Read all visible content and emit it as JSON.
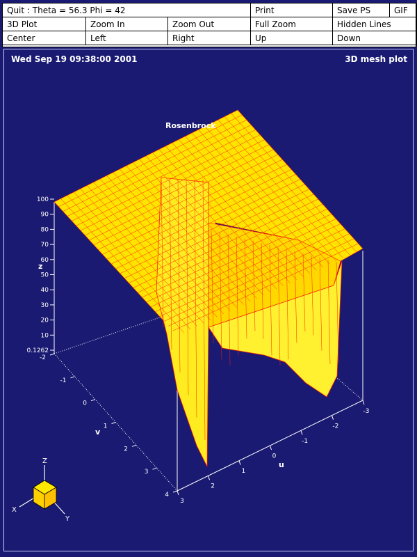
{
  "toolbar": {
    "rows": [
      [
        {
          "name": "quit-theta-phi-status",
          "label": "Quit :  Theta = 56.3   Phi = 42"
        },
        {
          "name": "print-button",
          "label": "Print"
        },
        {
          "name": "save-ps-button",
          "label": "Save PS"
        },
        {
          "name": "gif-button",
          "label": "GIF"
        }
      ],
      [
        {
          "name": "3d-plot-button",
          "label": "3D Plot"
        },
        {
          "name": "zoom-in-button",
          "label": "Zoom In"
        },
        {
          "name": "zoom-out-button",
          "label": "Zoom Out"
        },
        {
          "name": "full-zoom-button",
          "label": "Full Zoom"
        },
        {
          "name": "hidden-lines-button",
          "label": "Hidden Lines"
        }
      ],
      [
        {
          "name": "center-button",
          "label": "Center"
        },
        {
          "name": "left-button",
          "label": "Left"
        },
        {
          "name": "right-button",
          "label": "Right"
        },
        {
          "name": "up-button",
          "label": "Up"
        },
        {
          "name": "down-button",
          "label": "Down"
        }
      ]
    ]
  },
  "header": {
    "timestamp": "Wed Sep 19 09:38:00 2001",
    "plot_type": "3D mesh plot"
  },
  "plot": {
    "title": "Rosenbrock",
    "z_axis_label": "z",
    "v_axis_label": "v",
    "u_axis_label": "u",
    "z_ticks": [
      "100",
      "90",
      "80",
      "70",
      "60",
      "50",
      "40",
      "30",
      "20",
      "10",
      "0.1262"
    ],
    "v_ticks": [
      "-2",
      "-1",
      "0",
      "1",
      "2",
      "3",
      "4"
    ],
    "u_ticks": [
      "3",
      "2",
      "1",
      "0",
      "-1",
      "-2",
      "-3"
    ],
    "orientation": {
      "z": "Z",
      "x": "X",
      "y": "Y"
    }
  },
  "colors": {
    "background": "#1a1a72",
    "surface_fill": "#ffee00",
    "mesh_line": "#ff2000",
    "axis": "#ffffff",
    "toolbar_bg": "#ffffff"
  }
}
